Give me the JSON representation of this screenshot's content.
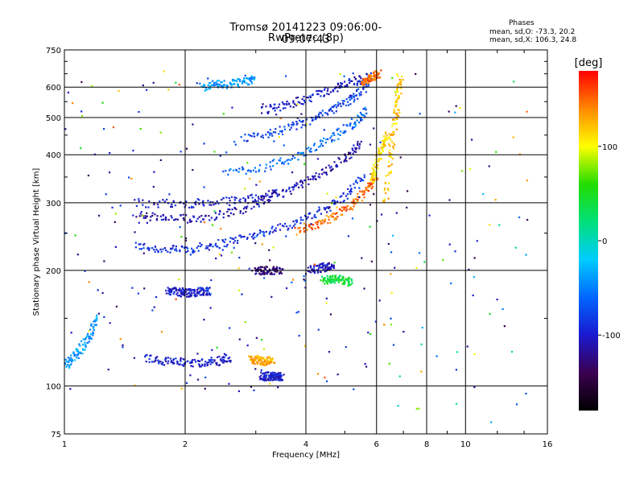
{
  "header": {
    "title_line1": "Tromsø 20141223 09:06:00-09:07:43",
    "title_line2": "RwPretec (8p)",
    "stats_header": "Phases",
    "stats_o": "mean, sd,O: -73.3, 20.2",
    "stats_x": "mean, sd,X: 106.3, 24.8"
  },
  "chart_data": {
    "type": "scatter",
    "xlabel": "Frequency [MHz]",
    "ylabel": "Stationary phase Virtual Height [km]",
    "xscale": "log",
    "yscale": "log",
    "xlim": [
      1,
      16
    ],
    "ylim": [
      75,
      750
    ],
    "x_ticks": [
      1,
      2,
      4,
      6,
      8,
      10,
      16
    ],
    "x_tick_labels": [
      "1",
      "2",
      "4",
      "6",
      "8",
      "10",
      "16"
    ],
    "y_ticks": [
      75,
      100,
      200,
      300,
      400,
      500,
      600,
      750
    ],
    "y_tick_labels": [
      "75",
      "100",
      "200",
      "300",
      "400",
      "500",
      "600",
      "750"
    ],
    "grid": true,
    "colorbar": {
      "label": "[deg]",
      "range": [
        -180,
        180
      ],
      "ticks": [
        100,
        0,
        -100
      ],
      "tick_labels": [
        "100",
        "0",
        "-100"
      ],
      "colormap": [
        "#000000",
        "#3b0050",
        "#1a1acf",
        "#0066ff",
        "#00ccff",
        "#00e07a",
        "#22dd00",
        "#ffff00",
        "#ff8800",
        "#ff0000"
      ]
    },
    "traces": [
      {
        "f": [
          1.5,
          1.8,
          2.1,
          2.5,
          3.0,
          3.6,
          4.3,
          5.0,
          5.6
        ],
        "h": [
          232,
          226,
          228,
          236,
          248,
          262,
          282,
          312,
          352
        ],
        "phase": -90
      },
      {
        "f": [
          3.8,
          4.3,
          4.8,
          5.3,
          5.7,
          6.0
        ],
        "h": [
          256,
          264,
          280,
          300,
          328,
          350
        ],
        "phase": 150
      },
      {
        "f": [
          1.5,
          1.8,
          2.2,
          2.7,
          3.2,
          3.8,
          4.4,
          5.0,
          5.5
        ],
        "h": [
          280,
          272,
          274,
          286,
          306,
          330,
          358,
          392,
          430
        ],
        "phase": -110
      },
      {
        "f": [
          1.5,
          2.0,
          2.5,
          3.0,
          3.5
        ],
        "h": [
          300,
          298,
          302,
          310,
          320
        ],
        "phase": -100
      },
      {
        "f": [
          2.5,
          3.2,
          3.9,
          4.6,
          5.2,
          5.7
        ],
        "h": [
          360,
          372,
          400,
          440,
          480,
          520
        ],
        "phase": -60
      },
      {
        "f": [
          2.8,
          3.4,
          4.0,
          4.6,
          5.2,
          5.7
        ],
        "h": [
          440,
          460,
          485,
          520,
          560,
          600
        ],
        "phase": -80
      },
      {
        "f": [
          3.1,
          3.6,
          4.2,
          4.8,
          5.4,
          5.8
        ],
        "h": [
          520,
          540,
          570,
          600,
          625,
          640
        ],
        "phase": -100
      },
      {
        "f": [
          1.6,
          1.8,
          2.0,
          2.2,
          2.4,
          2.6
        ],
        "h": [
          118,
          116,
          115,
          115,
          116,
          118
        ],
        "phase": -100
      },
      {
        "f": [
          2.9,
          3.0,
          3.1,
          3.2,
          3.3
        ],
        "h": [
          117,
          117,
          116,
          116,
          117
        ],
        "phase": 130
      },
      {
        "f": [
          3.1,
          3.2,
          3.3,
          3.4,
          3.5
        ],
        "h": [
          106,
          106,
          106,
          106,
          106
        ],
        "phase": -100
      },
      {
        "f": [
          1.8,
          1.9,
          2.0,
          2.1,
          2.2,
          2.3
        ],
        "h": [
          177,
          176,
          175,
          175,
          176,
          177
        ],
        "phase": -100
      },
      {
        "f": [
          3.0,
          3.1,
          3.3,
          3.5
        ],
        "h": [
          200,
          200,
          200,
          200
        ],
        "phase": -130
      },
      {
        "f": [
          4.1,
          4.3,
          4.5,
          4.7
        ],
        "h": [
          200,
          202,
          205,
          206
        ],
        "phase": -110
      },
      {
        "f": [
          4.4,
          4.6,
          4.8,
          5.0,
          5.2
        ],
        "h": [
          188,
          190,
          190,
          188,
          186
        ],
        "phase": 40
      },
      {
        "f": [
          6.3,
          6.5,
          6.7,
          6.8,
          6.9
        ],
        "h": [
          300,
          400,
          500,
          560,
          640
        ],
        "phase": 120
      },
      {
        "f": [
          5.8,
          6.0,
          6.2,
          6.4
        ],
        "h": [
          340,
          380,
          420,
          450
        ],
        "phase": 110
      },
      {
        "f": [
          1.0,
          1.05,
          1.1,
          1.15,
          1.2
        ],
        "h": [
          112,
          118,
          125,
          135,
          150
        ],
        "phase": -40
      },
      {
        "f": [
          2.2,
          2.4,
          2.6,
          2.8,
          3.0
        ],
        "h": [
          600,
          610,
          612,
          620,
          630
        ],
        "phase": -40
      },
      {
        "f": [
          5.5,
          5.7,
          5.9,
          6.1
        ],
        "h": [
          620,
          630,
          640,
          650
        ],
        "phase": 150
      }
    ]
  }
}
